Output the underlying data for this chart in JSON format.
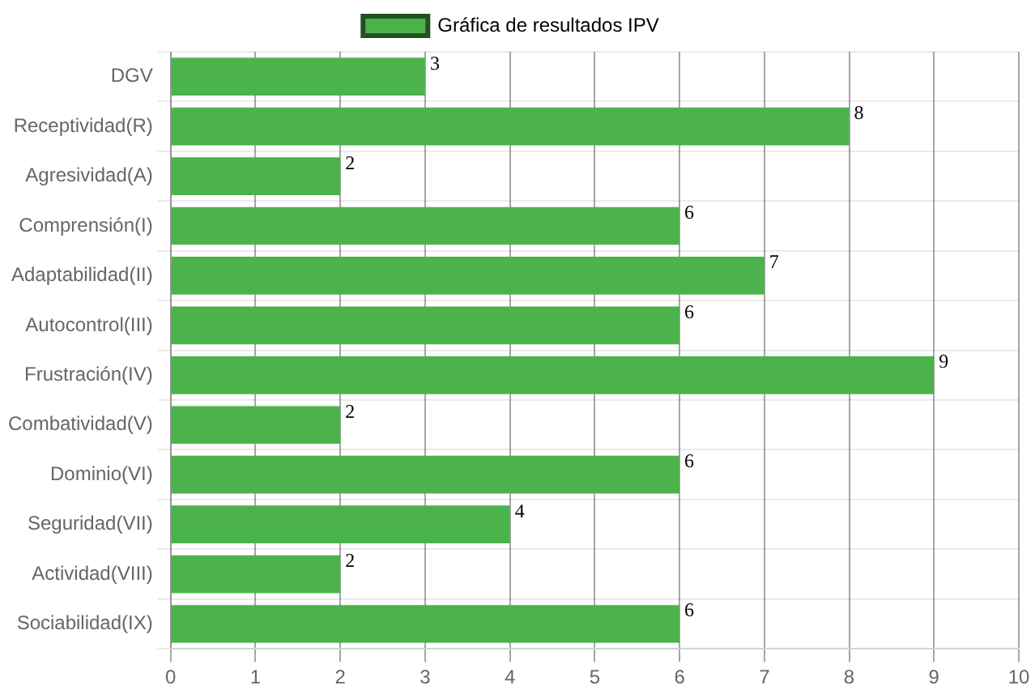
{
  "chart_data": {
    "type": "bar",
    "orientation": "horizontal",
    "categories": [
      "DGV",
      "Receptividad(R)",
      "Agresividad(A)",
      "Comprensión(I)",
      "Adaptabilidad(II)",
      "Autocontrol(III)",
      "Frustración(IV)",
      "Combatividad(V)",
      "Dominio(VI)",
      "Seguridad(VII)",
      "Actividad(VIII)",
      "Sociabilidad(IX)"
    ],
    "series": [
      {
        "name": "Gráfica de resultados IPV",
        "color": "#4cb34c",
        "values": [
          3,
          8,
          2,
          6,
          7,
          6,
          9,
          2,
          6,
          4,
          2,
          6
        ]
      }
    ],
    "xlim": [
      0,
      10
    ],
    "xticks": [
      0,
      1,
      2,
      3,
      4,
      5,
      6,
      7,
      8,
      9,
      10
    ],
    "grid": true,
    "legend": "top",
    "data_labels": true
  }
}
